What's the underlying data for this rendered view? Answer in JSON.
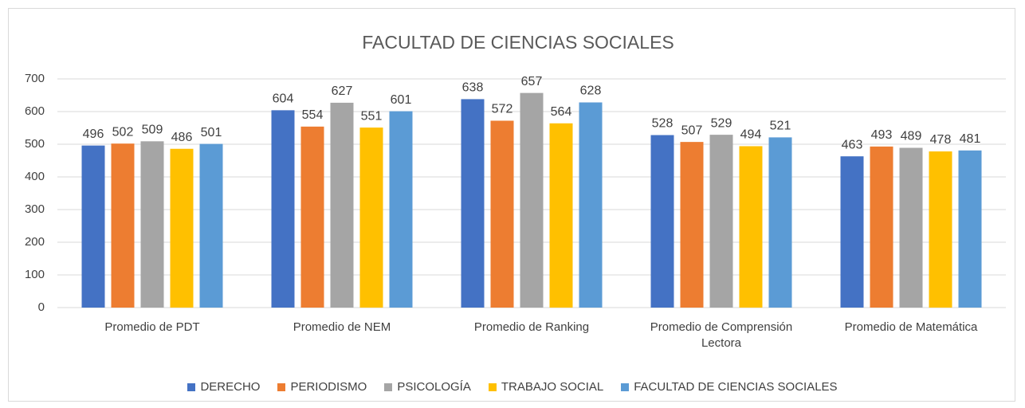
{
  "chart_data": {
    "type": "bar",
    "title": "FACULTAD DE CIENCIAS SOCIALES",
    "categories": [
      "Promedio de PDT",
      "Promedio de NEM",
      "Promedio de Ranking",
      "Promedio de Comprensión Lectora",
      "Promedio de Matemática"
    ],
    "series": [
      {
        "name": "DERECHO",
        "color": "#4472c4",
        "values": [
          496,
          604,
          638,
          528,
          463
        ]
      },
      {
        "name": "PERIODISMO",
        "color": "#ed7d31",
        "values": [
          502,
          554,
          572,
          507,
          493
        ]
      },
      {
        "name": "PSICOLOGÍA",
        "color": "#a5a5a5",
        "values": [
          509,
          627,
          657,
          529,
          489
        ]
      },
      {
        "name": "TRABAJO SOCIAL",
        "color": "#ffc000",
        "values": [
          486,
          551,
          564,
          494,
          478
        ]
      },
      {
        "name": "FACULTAD DE CIENCIAS SOCIALES",
        "color": "#5b9bd5",
        "values": [
          501,
          601,
          628,
          521,
          481
        ]
      }
    ],
    "ylim": [
      0,
      700
    ],
    "yticks": [
      0,
      100,
      200,
      300,
      400,
      500,
      600,
      700
    ],
    "grid": true,
    "legend": "bottom"
  }
}
